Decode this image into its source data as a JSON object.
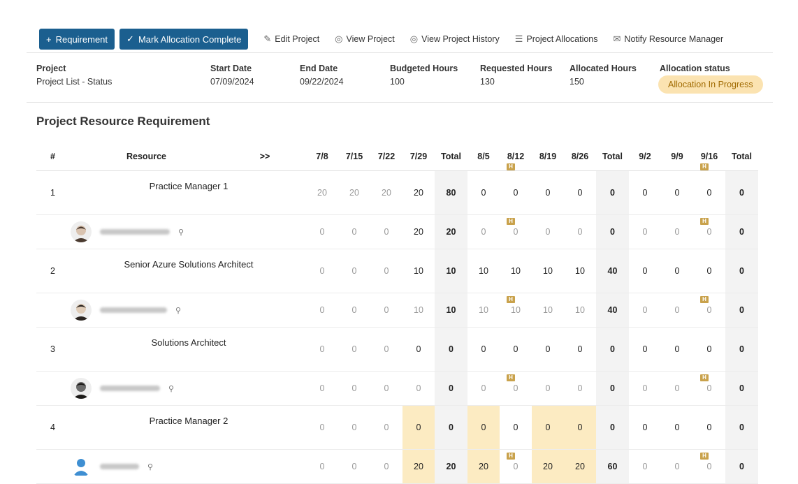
{
  "toolbar": {
    "requirement_label": "Requirement",
    "mark_complete_label": "Mark Allocation Complete",
    "edit_project_label": "Edit Project",
    "view_project_label": "View Project",
    "view_history_label": "View Project History",
    "allocations_label": "Project Allocations",
    "notify_label": "Notify Resource Manager"
  },
  "project_info": {
    "project_label": "Project",
    "project_value": "Project List - Status",
    "start_label": "Start Date",
    "start_value": "07/09/2024",
    "end_label": "End Date",
    "end_value": "09/22/2024",
    "budgeted_label": "Budgeted Hours",
    "budgeted_value": "100",
    "requested_label": "Requested Hours",
    "requested_value": "130",
    "allocated_label": "Allocated Hours",
    "allocated_value": "150",
    "status_label": "Allocation status",
    "status_value": "Allocation In Progress"
  },
  "section_title": "Project Resource Requirement",
  "table": {
    "num_header": "#",
    "resource_header": "Resource",
    "expand_symbol": ">>",
    "weeks": [
      "7/8",
      "7/15",
      "7/22",
      "7/29",
      "Total",
      "8/5",
      "8/12",
      "8/19",
      "8/26",
      "Total",
      "9/2",
      "9/9",
      "9/16",
      "Total"
    ],
    "holiday_badge": "H",
    "rows": [
      {
        "num": "1",
        "name": "Practice Manager 1",
        "values": [
          "20",
          "20",
          "20",
          "20",
          "80",
          "0",
          "0",
          "0",
          "0",
          "0",
          "0",
          "0",
          "0",
          "0"
        ]
      },
      {
        "num": "",
        "name": "",
        "values": [
          "0",
          "0",
          "0",
          "20",
          "20",
          "0",
          "0",
          "0",
          "0",
          "0",
          "0",
          "0",
          "0",
          "0"
        ]
      },
      {
        "num": "2",
        "name": "Senior Azure Solutions Architect",
        "values": [
          "0",
          "0",
          "0",
          "10",
          "10",
          "10",
          "10",
          "10",
          "10",
          "40",
          "0",
          "0",
          "0",
          "0"
        ]
      },
      {
        "num": "",
        "name": "",
        "values": [
          "0",
          "0",
          "0",
          "10",
          "10",
          "10",
          "10",
          "10",
          "10",
          "40",
          "0",
          "0",
          "0",
          "0"
        ]
      },
      {
        "num": "3",
        "name": "Solutions Architect",
        "values": [
          "0",
          "0",
          "0",
          "0",
          "0",
          "0",
          "0",
          "0",
          "0",
          "0",
          "0",
          "0",
          "0",
          "0"
        ]
      },
      {
        "num": "",
        "name": "",
        "values": [
          "0",
          "0",
          "0",
          "0",
          "0",
          "0",
          "0",
          "0",
          "0",
          "0",
          "0",
          "0",
          "0",
          "0"
        ]
      },
      {
        "num": "4",
        "name": "Practice Manager 2",
        "values": [
          "0",
          "0",
          "0",
          "0",
          "0",
          "0",
          "0",
          "0",
          "0",
          "0",
          "0",
          "0",
          "0",
          "0"
        ]
      },
      {
        "num": "",
        "name": "",
        "values": [
          "0",
          "0",
          "0",
          "20",
          "20",
          "20",
          "0",
          "20",
          "20",
          "60",
          "0",
          "0",
          "0",
          "0"
        ]
      }
    ]
  },
  "colors": {
    "primary": "#1b5f8f",
    "highlight": "#fcebc2",
    "pill_bg": "#fbe3b1",
    "holiday": "#c9a24c"
  }
}
